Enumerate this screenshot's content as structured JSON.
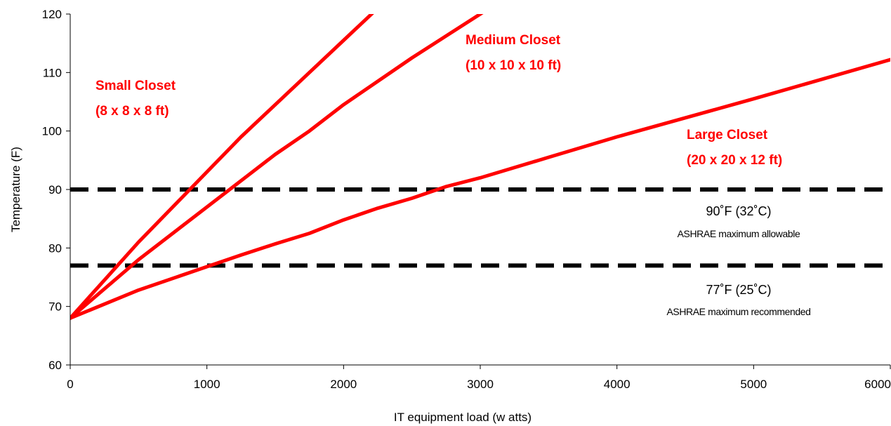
{
  "chart_data": {
    "type": "line",
    "xlabel": "IT equipment load (w atts)",
    "ylabel": "Temperature (F)",
    "xlim": [
      0,
      6000
    ],
    "ylim": [
      60,
      120
    ],
    "x_ticks": [
      0,
      1000,
      2000,
      3000,
      4000,
      5000,
      6000
    ],
    "y_ticks": [
      60,
      70,
      80,
      90,
      100,
      110,
      120
    ],
    "grid": false,
    "series_color": "#ff0000",
    "threshold_color": "#000000",
    "series": [
      {
        "labels": [
          "Small Closet",
          "(8 x 8 x 8 ft)"
        ],
        "x": [
          0,
          250,
          500,
          750,
          1000,
          1250,
          1500,
          1750,
          2000,
          2250,
          2450
        ],
        "y": [
          68,
          74.5,
          81,
          87,
          93,
          99,
          104.5,
          110,
          115.5,
          121,
          125
        ]
      },
      {
        "labels": [
          "Medium Closet",
          "(10 x 10 x 10 ft)"
        ],
        "x": [
          0,
          500,
          750,
          1000,
          1250,
          1500,
          1750,
          2000,
          2500,
          3000,
          3200
        ],
        "y": [
          68,
          78,
          82.5,
          87,
          91.5,
          96,
          100,
          104.5,
          112.5,
          120,
          123
        ]
      },
      {
        "labels": [
          "Large Closet",
          "(20 x 20 x 12 ft)"
        ],
        "x": [
          0,
          500,
          1000,
          1250,
          1500,
          1750,
          2000,
          2250,
          2500,
          2750,
          3000,
          3500,
          4000,
          5000,
          6000
        ],
        "y": [
          68,
          72.8,
          76.8,
          78.8,
          80.7,
          82.5,
          84.8,
          86.8,
          88.5,
          90.5,
          92,
          95.5,
          99,
          105.5,
          112.2
        ]
      }
    ],
    "thresholds": [
      {
        "y": 90,
        "temp_label": "90˚F (32˚C)",
        "desc": "ASHRAE maximum allowable"
      },
      {
        "y": 77,
        "temp_label": "77˚F (25˚C)",
        "desc": "ASHRAE maximum recommended"
      }
    ]
  }
}
